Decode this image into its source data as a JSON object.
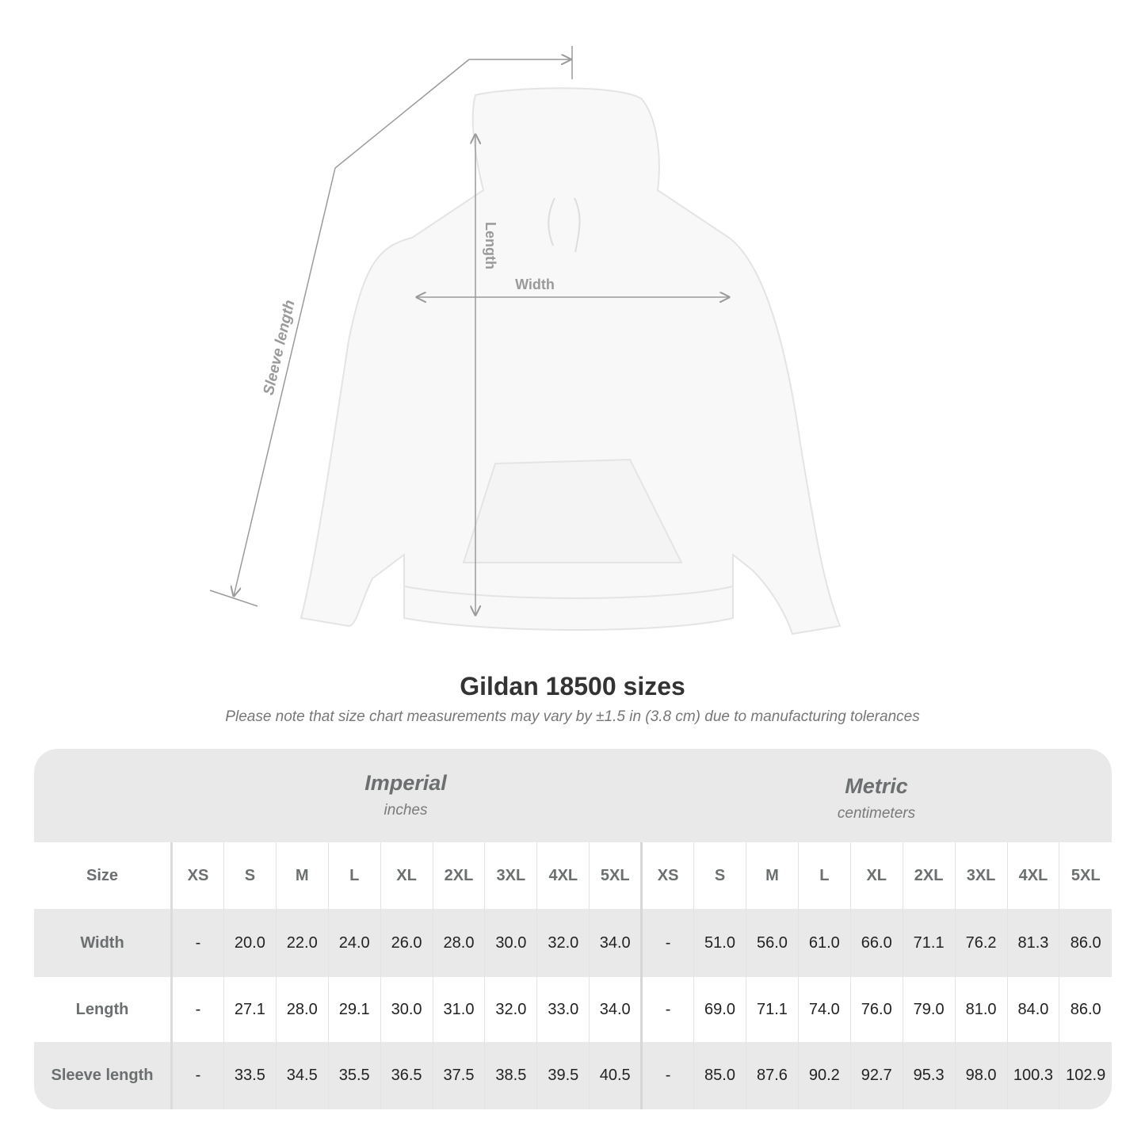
{
  "illustration": {
    "labels": {
      "sleeve": "Sleeve length",
      "length": "Length",
      "width": "Width"
    },
    "line_color": "#9a9a9a"
  },
  "title": "Gildan 18500 sizes",
  "note": "Please note that size chart measurements may vary by ±1.5 in (3.8 cm) due to manufacturing tolerances",
  "table": {
    "imperial": {
      "title": "Imperial",
      "unit": "inches"
    },
    "metric": {
      "title": "Metric",
      "unit": "centimeters"
    },
    "size_label": "Size",
    "sizes": [
      "XS",
      "S",
      "M",
      "L",
      "XL",
      "2XL",
      "3XL",
      "4XL",
      "5XL"
    ],
    "rows": [
      {
        "label": "Width",
        "imperial": [
          "-",
          "20.0",
          "22.0",
          "24.0",
          "26.0",
          "28.0",
          "30.0",
          "32.0",
          "34.0"
        ],
        "metric": [
          "-",
          "51.0",
          "56.0",
          "61.0",
          "66.0",
          "71.1",
          "76.2",
          "81.3",
          "86.0"
        ]
      },
      {
        "label": "Length",
        "imperial": [
          "-",
          "27.1",
          "28.0",
          "29.1",
          "30.0",
          "31.0",
          "32.0",
          "33.0",
          "34.0"
        ],
        "metric": [
          "-",
          "69.0",
          "71.1",
          "74.0",
          "76.0",
          "79.0",
          "81.0",
          "84.0",
          "86.0"
        ]
      },
      {
        "label": "Sleeve length",
        "imperial": [
          "-",
          "33.5",
          "34.5",
          "35.5",
          "36.5",
          "37.5",
          "38.5",
          "39.5",
          "40.5"
        ],
        "metric": [
          "-",
          "85.0",
          "87.6",
          "90.2",
          "92.7",
          "95.3",
          "98.0",
          "100.3",
          "102.9"
        ]
      }
    ]
  }
}
